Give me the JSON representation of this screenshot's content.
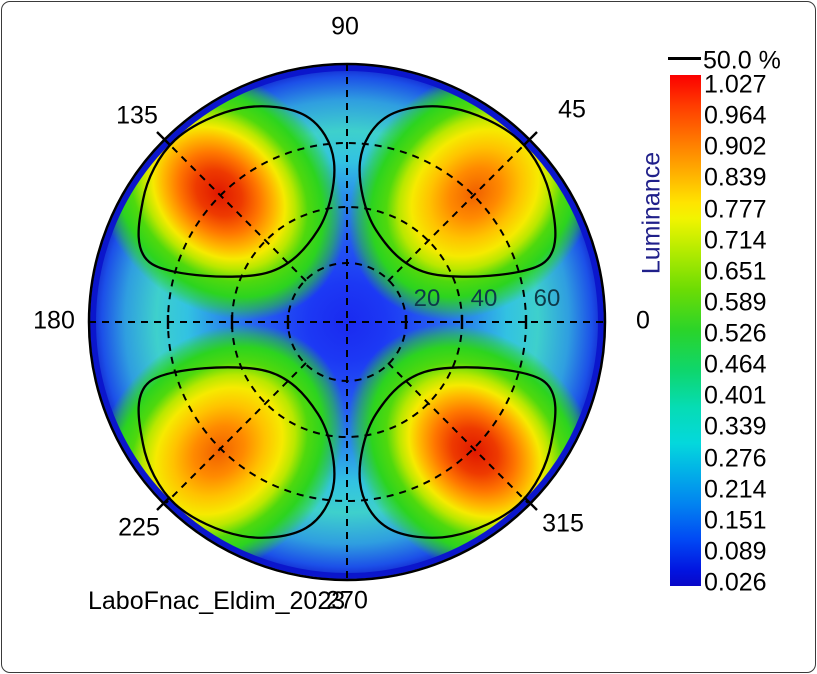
{
  "chart": {
    "title": "LaboFnac_Eldim_2023",
    "angle_labels": [
      "0",
      "45",
      "90",
      "135",
      "180",
      "225",
      "270",
      "315"
    ],
    "radial_labels": [
      "20",
      "40",
      "60"
    ],
    "colorbar": {
      "axis_label": "Luminance",
      "marker_label": "50.0 %",
      "tick_labels": [
        "1.027",
        "0.964",
        "0.902",
        "0.839",
        "0.777",
        "0.714",
        "0.651",
        "0.589",
        "0.526",
        "0.464",
        "0.401",
        "0.339",
        "0.276",
        "0.214",
        "0.151",
        "0.089",
        "0.026"
      ]
    }
  },
  "chart_data": {
    "type": "heatmap",
    "projection": "polar",
    "title": "LaboFnac_Eldim_2023",
    "quantity": "Luminance",
    "colormap": "jet",
    "value_min": 0.026,
    "value_max": 1.027,
    "colorbar_ticks": [
      1.027,
      0.964,
      0.902,
      0.839,
      0.777,
      0.714,
      0.651,
      0.589,
      0.526,
      0.464,
      0.401,
      0.339,
      0.276,
      0.214,
      0.151,
      0.089,
      0.026
    ],
    "contour_level_label": "50.0 %",
    "azimuth_ticks_deg": [
      0,
      45,
      90,
      135,
      180,
      225,
      270,
      315
    ],
    "inclination_ticks_deg": [
      20,
      40,
      60
    ],
    "center_value_approx": 0.09,
    "lobes": [
      {
        "azimuth_deg": 45,
        "peak_inclination_deg": 45,
        "peak_value_approx": 0.93,
        "core": "orange"
      },
      {
        "azimuth_deg": 135,
        "peak_inclination_deg": 45,
        "peak_value_approx": 1.02,
        "core": "red"
      },
      {
        "azimuth_deg": 225,
        "peak_inclination_deg": 45,
        "peak_value_approx": 0.9,
        "core": "orange"
      },
      {
        "azimuth_deg": 315,
        "peak_inclination_deg": 45,
        "peak_value_approx": 1.02,
        "core": "red"
      }
    ],
    "colors": {
      "peak_red": "#e01800",
      "lobe_orange": "#ff8a00",
      "mid_green": "#2cd41f",
      "valley_blue": "#1a2af0",
      "rim_blue": "#0b16cc",
      "grid": "#000000",
      "axis_text": "#000000",
      "luminance_label": "#20208a"
    },
    "legend_position": "right"
  }
}
